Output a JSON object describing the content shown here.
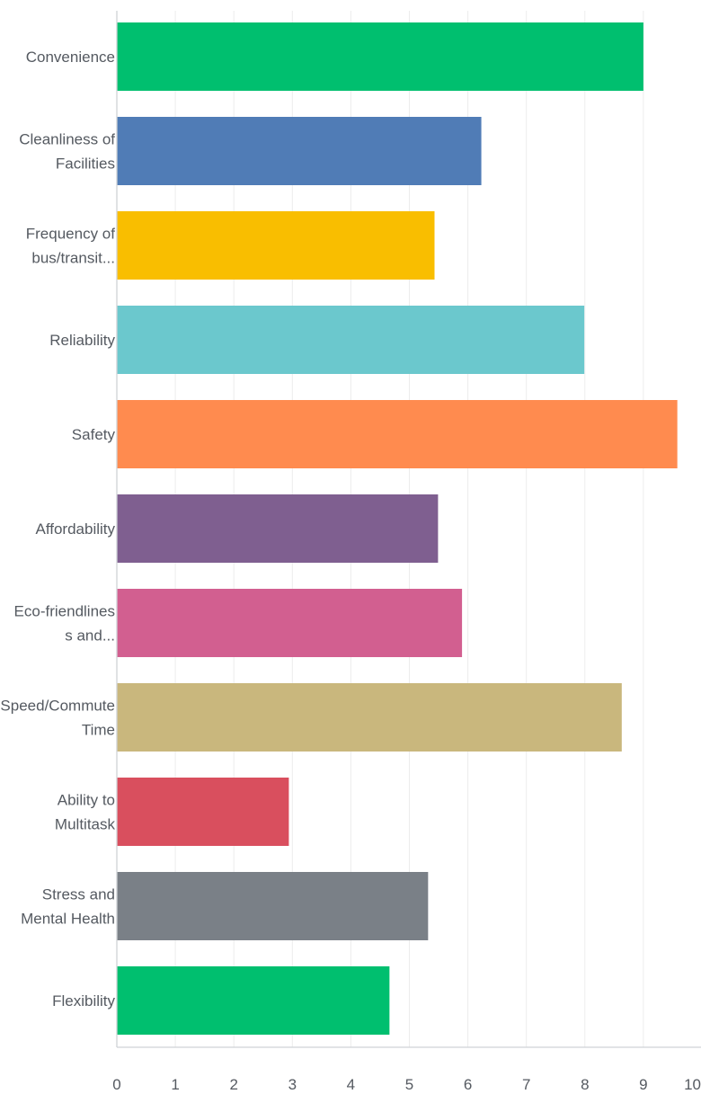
{
  "chart_data": {
    "type": "bar",
    "orientation": "horizontal",
    "categories": [
      [
        "Convenience"
      ],
      [
        "Cleanliness of",
        "Facilities"
      ],
      [
        "Frequency of",
        "bus/transit..."
      ],
      [
        "Reliability"
      ],
      [
        "Safety"
      ],
      [
        "Affordability"
      ],
      [
        "Eco-friendlines",
        "s and..."
      ],
      [
        "Speed/Commute",
        "Time"
      ],
      [
        "Ability to",
        "Multitask"
      ],
      [
        "Stress and",
        "Mental Health"
      ],
      [
        "Flexibility"
      ]
    ],
    "values": [
      9.0,
      6.23,
      5.43,
      7.99,
      9.58,
      5.49,
      5.9,
      8.63,
      2.94,
      5.32,
      4.66
    ],
    "colors": [
      "#00bf6f",
      "#507cb6",
      "#f9be00",
      "#6bc8cd",
      "#ff8b4f",
      "#7f5f90",
      "#d25f90",
      "#c9b77d",
      "#d94f5e",
      "#7a8087",
      "#00bf6f"
    ],
    "xlim": [
      0,
      10
    ],
    "x_ticks": [
      "0",
      "1",
      "2",
      "3",
      "4",
      "5",
      "6",
      "7",
      "8",
      "9",
      "10"
    ],
    "grid": true,
    "title": "",
    "xlabel": "",
    "ylabel": ""
  }
}
